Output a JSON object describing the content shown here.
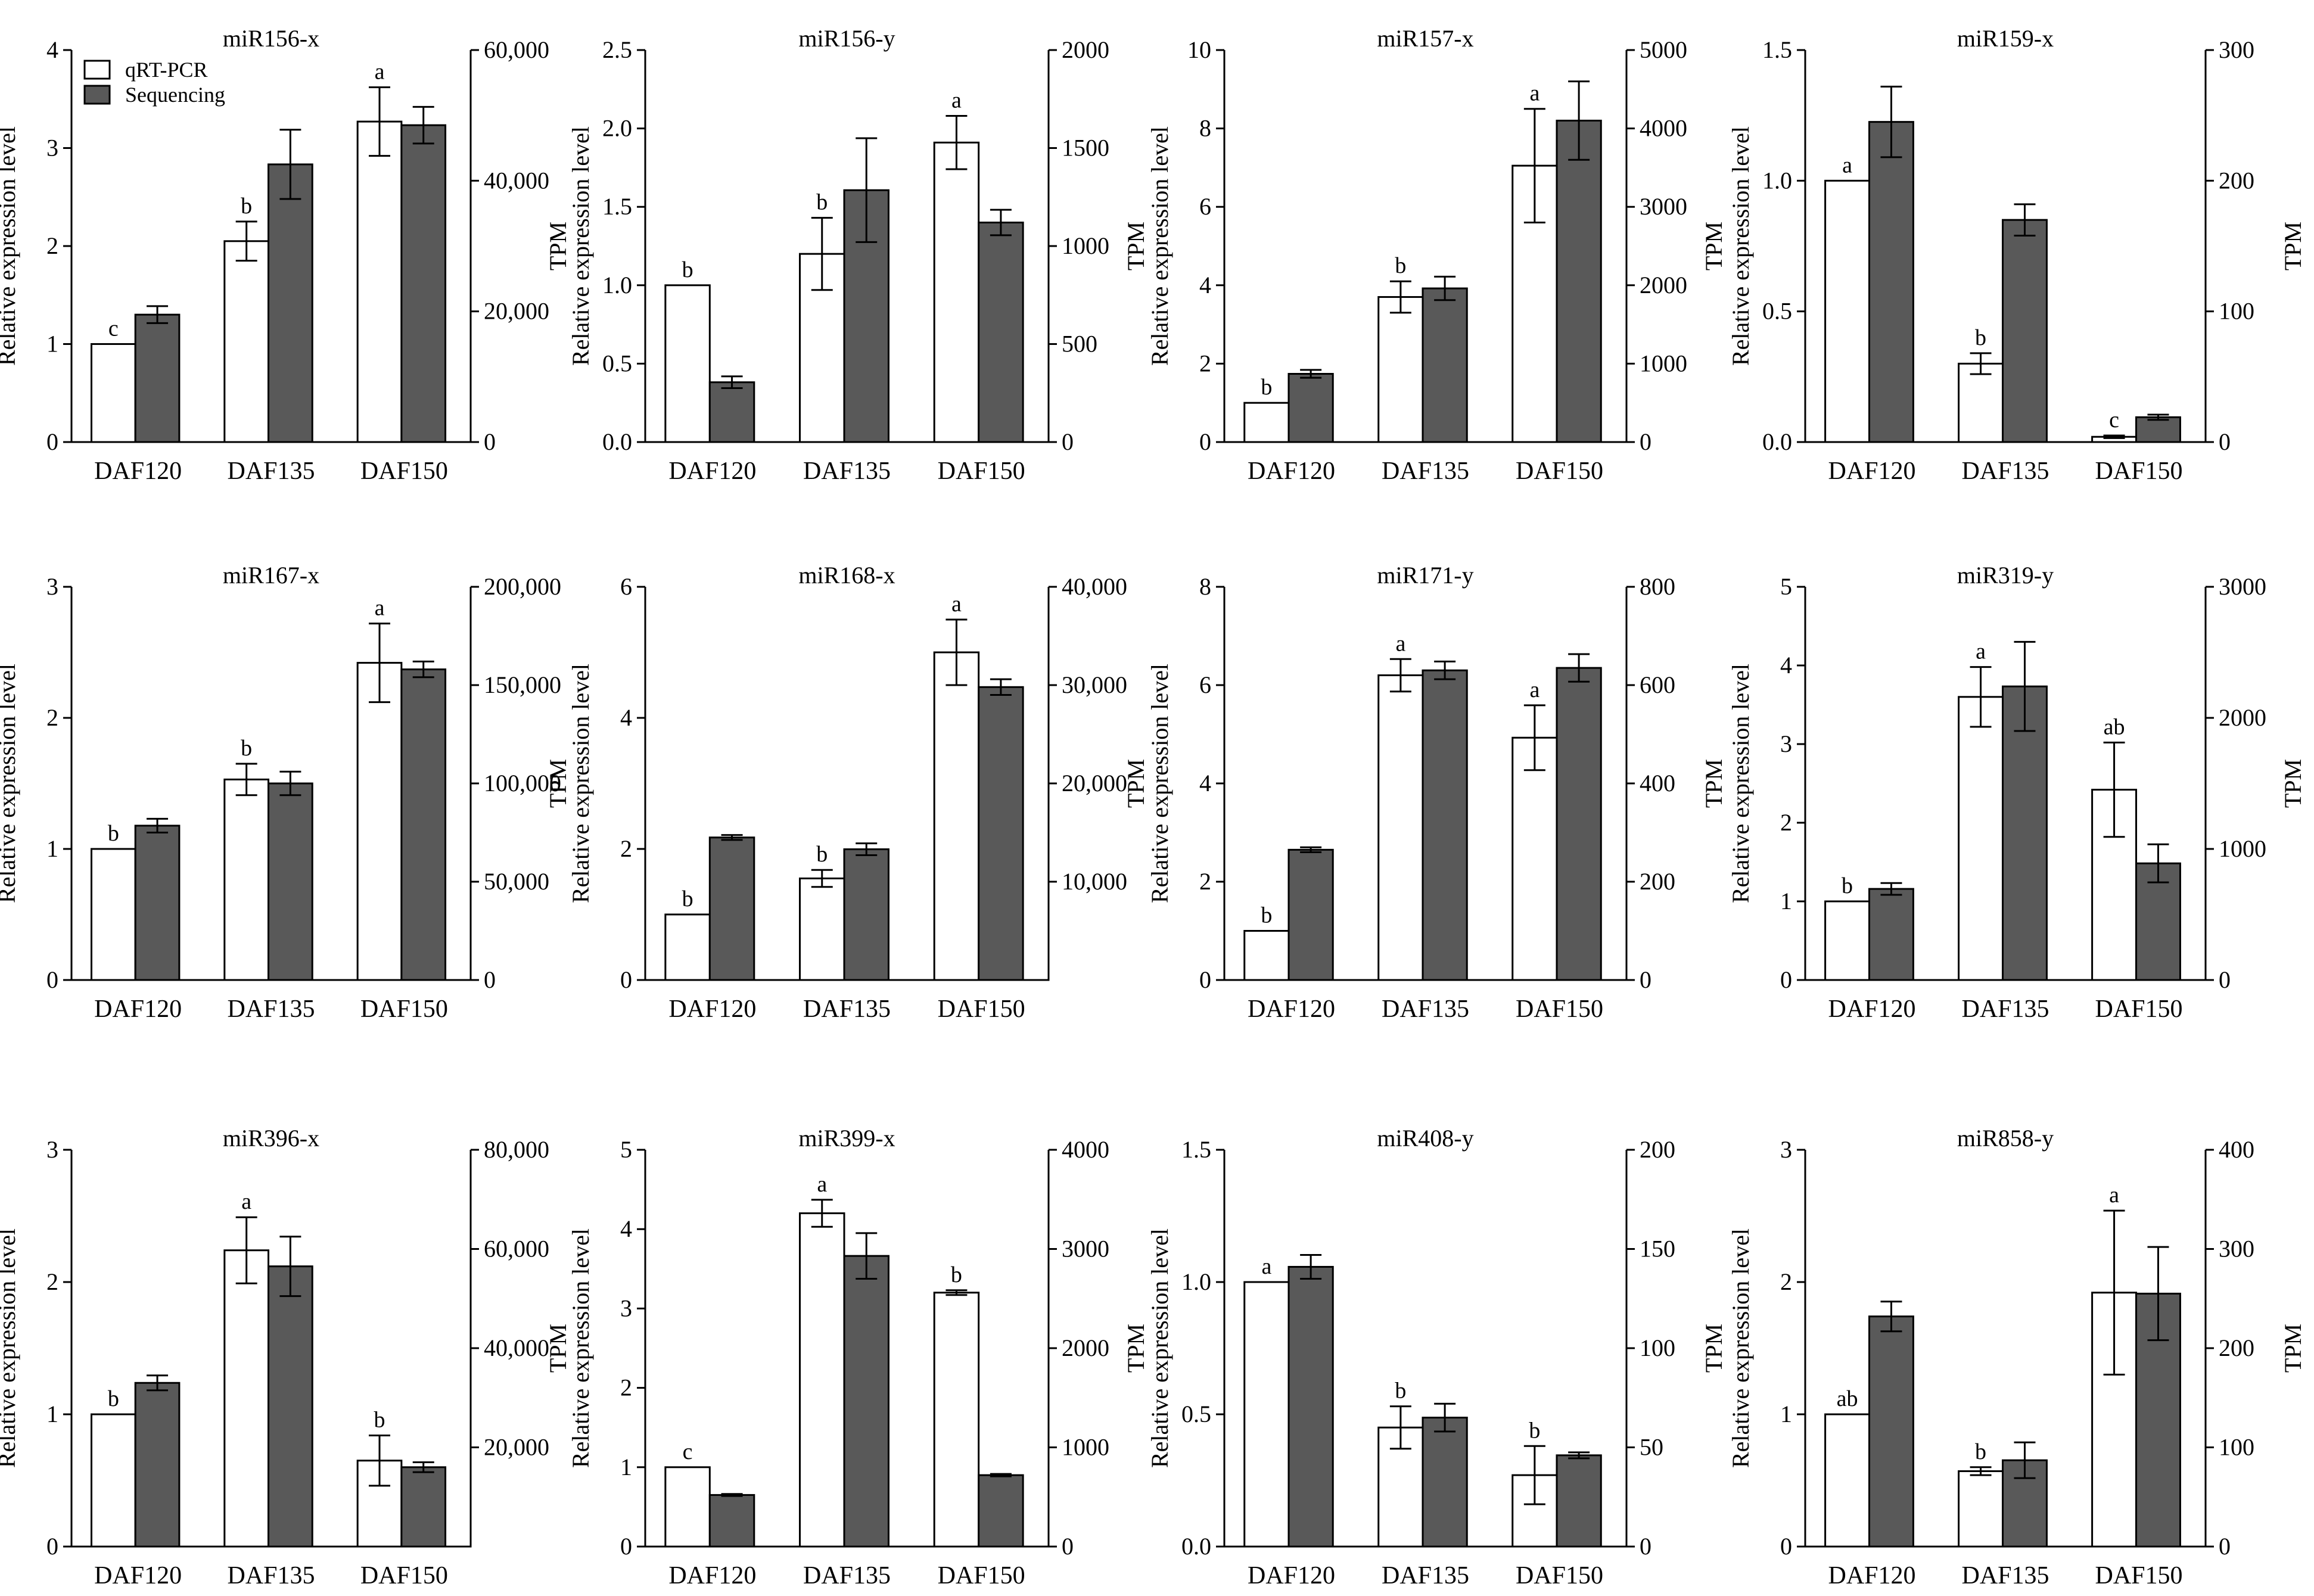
{
  "colors": {
    "qrt": "#ffffff",
    "seq": "#595959",
    "axis": "#000000"
  },
  "legend": {
    "qrt_label": "qRT-PCR",
    "seq_label": "Sequencing"
  },
  "chart_data": [
    {
      "type": "bar",
      "title": "miR156-x",
      "categories": [
        "DAF120",
        "DAF135",
        "DAF150"
      ],
      "ylabel": "Relative expression level",
      "y2label": "TPM",
      "ylim": [
        0,
        4
      ],
      "yticks": [
        "0",
        "1",
        "2",
        "3",
        "4"
      ],
      "y2lim": [
        0,
        60000
      ],
      "y2ticks": [
        "0",
        "20,000",
        "40,000",
        "60,000"
      ],
      "series": [
        {
          "name": "qRT-PCR",
          "axis": "left",
          "values": [
            1.0,
            2.05,
            3.27
          ],
          "errors": [
            0,
            0.2,
            0.35
          ],
          "letters": [
            "c",
            "b",
            "a"
          ]
        },
        {
          "name": "Sequencing",
          "axis": "right",
          "values": [
            19500,
            42500,
            48500
          ],
          "errors": [
            1300,
            5300,
            2800
          ]
        }
      ],
      "show_legend": true
    },
    {
      "type": "bar",
      "title": "miR156-y",
      "categories": [
        "DAF120",
        "DAF135",
        "DAF150"
      ],
      "ylabel": "Relative expression level",
      "y2label": "TPM",
      "ylim": [
        0,
        2.5
      ],
      "yticks": [
        "0.0",
        "0.5",
        "1.0",
        "1.5",
        "2.0",
        "2.5"
      ],
      "y2lim": [
        0,
        2000
      ],
      "y2ticks": [
        "0",
        "500",
        "1000",
        "1500",
        "2000"
      ],
      "series": [
        {
          "name": "qRT-PCR",
          "axis": "left",
          "values": [
            1.0,
            1.2,
            1.91
          ],
          "errors": [
            0,
            0.23,
            0.17
          ],
          "letters": [
            "b",
            "b",
            "a"
          ]
        },
        {
          "name": "Sequencing",
          "axis": "right",
          "values": [
            305,
            1285,
            1120
          ],
          "errors": [
            30,
            265,
            65
          ]
        }
      ]
    },
    {
      "type": "bar",
      "title": "miR157-x",
      "categories": [
        "DAF120",
        "DAF135",
        "DAF150"
      ],
      "ylabel": "Relative expression level",
      "y2label": "TPM",
      "ylim": [
        0,
        10
      ],
      "yticks": [
        "0",
        "2",
        "4",
        "6",
        "8",
        "10"
      ],
      "y2lim": [
        0,
        5000
      ],
      "y2ticks": [
        "0",
        "1000",
        "2000",
        "3000",
        "4000",
        "5000"
      ],
      "series": [
        {
          "name": "qRT-PCR",
          "axis": "left",
          "values": [
            1.0,
            3.7,
            7.05
          ],
          "errors": [
            0,
            0.4,
            1.45
          ],
          "letters": [
            "b",
            "b",
            "a"
          ]
        },
        {
          "name": "Sequencing",
          "axis": "right",
          "values": [
            870,
            1960,
            4100
          ],
          "errors": [
            50,
            150,
            500
          ]
        }
      ]
    },
    {
      "type": "bar",
      "title": "miR159-x",
      "categories": [
        "DAF120",
        "DAF135",
        "DAF150"
      ],
      "ylabel": "Relative expression level",
      "y2label": "TPM",
      "ylim": [
        0,
        1.5
      ],
      "yticks": [
        "0.0",
        "0.5",
        "1.0",
        "1.5"
      ],
      "y2lim": [
        0,
        300
      ],
      "y2ticks": [
        "0",
        "100",
        "200",
        "300"
      ],
      "series": [
        {
          "name": "qRT-PCR",
          "axis": "left",
          "values": [
            1.0,
            0.3,
            0.02
          ],
          "errors": [
            0,
            0.04,
            0.005
          ],
          "letters": [
            "a",
            "b",
            "c"
          ]
        },
        {
          "name": "Sequencing",
          "axis": "right",
          "values": [
            245,
            170,
            19
          ],
          "errors": [
            27,
            12,
            2
          ]
        }
      ]
    },
    {
      "type": "bar",
      "title": "miR167-x",
      "categories": [
        "DAF120",
        "DAF135",
        "DAF150"
      ],
      "ylabel": "Relative expression level",
      "y2label": "TPM",
      "ylim": [
        0,
        3
      ],
      "yticks": [
        "0",
        "1",
        "2",
        "3"
      ],
      "y2lim": [
        0,
        200000
      ],
      "y2ticks": [
        "0",
        "50,000",
        "100,000",
        "150,000",
        "200,000"
      ],
      "series": [
        {
          "name": "qRT-PCR",
          "axis": "left",
          "values": [
            1.0,
            1.53,
            2.42
          ],
          "errors": [
            0,
            0.12,
            0.3
          ],
          "letters": [
            "b",
            "b",
            "a"
          ]
        },
        {
          "name": "Sequencing",
          "axis": "right",
          "values": [
            78500,
            100000,
            158000
          ],
          "errors": [
            3500,
            6000,
            4000
          ]
        }
      ]
    },
    {
      "type": "bar",
      "title": "miR168-x",
      "categories": [
        "DAF120",
        "DAF135",
        "DAF150"
      ],
      "ylabel": "Relative expression level",
      "y2label": "TPM",
      "ylim": [
        0,
        6
      ],
      "yticks": [
        "0",
        "2",
        "4",
        "6"
      ],
      "y2lim": [
        0,
        40000
      ],
      "y2ticks": [
        "10,000",
        "20,000",
        "30,000",
        "40,000"
      ],
      "series": [
        {
          "name": "qRT-PCR",
          "axis": "left",
          "values": [
            1.0,
            1.55,
            5.0
          ],
          "errors": [
            0,
            0.13,
            0.5
          ],
          "letters": [
            "b",
            "b",
            "a"
          ]
        },
        {
          "name": "Sequencing",
          "axis": "right",
          "values": [
            14500,
            13300,
            29800
          ],
          "errors": [
            250,
            600,
            800
          ]
        }
      ]
    },
    {
      "type": "bar",
      "title": "miR171-y",
      "categories": [
        "DAF120",
        "DAF135",
        "DAF150"
      ],
      "ylabel": "Relative expression level",
      "y2label": "TPM",
      "ylim": [
        0,
        8
      ],
      "yticks": [
        "0",
        "2",
        "4",
        "6",
        "8"
      ],
      "y2lim": [
        0,
        800
      ],
      "y2ticks": [
        "0",
        "200",
        "400",
        "600",
        "800"
      ],
      "series": [
        {
          "name": "qRT-PCR",
          "axis": "left",
          "values": [
            1.0,
            6.2,
            4.93
          ],
          "errors": [
            0,
            0.33,
            0.66
          ],
          "letters": [
            "b",
            "a",
            "a"
          ]
        },
        {
          "name": "Sequencing",
          "axis": "right",
          "values": [
            265,
            630,
            635
          ],
          "errors": [
            5,
            18,
            28
          ]
        }
      ]
    },
    {
      "type": "bar",
      "title": "miR319-y",
      "categories": [
        "DAF120",
        "DAF135",
        "DAF150"
      ],
      "ylabel": "Relative expression level",
      "y2label": "TPM",
      "ylim": [
        0,
        5
      ],
      "yticks": [
        "0",
        "1",
        "2",
        "3",
        "4",
        "5"
      ],
      "y2lim": [
        0,
        3000
      ],
      "y2ticks": [
        "0",
        "1000",
        "2000",
        "3000"
      ],
      "series": [
        {
          "name": "qRT-PCR",
          "axis": "left",
          "values": [
            1.0,
            3.6,
            2.42
          ],
          "errors": [
            0,
            0.38,
            0.6
          ],
          "letters": [
            "b",
            "a",
            "ab"
          ]
        },
        {
          "name": "Sequencing",
          "axis": "right",
          "values": [
            695,
            2240,
            890
          ],
          "errors": [
            45,
            340,
            145
          ]
        }
      ]
    },
    {
      "type": "bar",
      "title": "miR396-x",
      "categories": [
        "DAF120",
        "DAF135",
        "DAF150"
      ],
      "ylabel": "Relative expression level",
      "y2label": "TPM",
      "ylim": [
        0,
        3
      ],
      "yticks": [
        "0",
        "1",
        "2",
        "3"
      ],
      "y2lim": [
        0,
        80000
      ],
      "y2ticks": [
        "20,000",
        "40,000",
        "60,000",
        "80,000"
      ],
      "series": [
        {
          "name": "qRT-PCR",
          "axis": "left",
          "values": [
            1.0,
            2.24,
            0.65
          ],
          "errors": [
            0,
            0.25,
            0.19
          ],
          "letters": [
            "b",
            "a",
            "b"
          ]
        },
        {
          "name": "Sequencing",
          "axis": "right",
          "values": [
            33000,
            56500,
            16000
          ],
          "errors": [
            1500,
            6000,
            1000
          ]
        }
      ]
    },
    {
      "type": "bar",
      "title": "miR399-x",
      "categories": [
        "DAF120",
        "DAF135",
        "DAF150"
      ],
      "ylabel": "Relative expression level",
      "y2label": "TPM",
      "ylim": [
        0,
        5
      ],
      "yticks": [
        "0",
        "1",
        "2",
        "3",
        "4",
        "5"
      ],
      "y2lim": [
        0,
        4000
      ],
      "y2ticks": [
        "0",
        "1000",
        "2000",
        "3000",
        "4000"
      ],
      "series": [
        {
          "name": "qRT-PCR",
          "axis": "left",
          "values": [
            1.0,
            4.2,
            3.2
          ],
          "errors": [
            0,
            0.17,
            0.03
          ],
          "letters": [
            "c",
            "a",
            "b"
          ]
        },
        {
          "name": "Sequencing",
          "axis": "right",
          "values": [
            520,
            2930,
            720
          ],
          "errors": [
            10,
            230,
            12
          ]
        }
      ]
    },
    {
      "type": "bar",
      "title": "miR408-y",
      "categories": [
        "DAF120",
        "DAF135",
        "DAF150"
      ],
      "ylabel": "Relative expression level",
      "y2label": "TPM",
      "ylim": [
        0,
        1.5
      ],
      "yticks": [
        "0.0",
        "0.5",
        "1.0",
        "1.5"
      ],
      "y2lim": [
        0,
        200
      ],
      "y2ticks": [
        "0",
        "50",
        "100",
        "150",
        "200"
      ],
      "series": [
        {
          "name": "qRT-PCR",
          "axis": "left",
          "values": [
            1.0,
            0.45,
            0.27
          ],
          "errors": [
            0,
            0.08,
            0.11
          ],
          "letters": [
            "a",
            "b",
            "b"
          ]
        },
        {
          "name": "Sequencing",
          "axis": "right",
          "values": [
            141,
            65,
            46
          ],
          "errors": [
            6,
            7,
            1.5
          ]
        }
      ]
    },
    {
      "type": "bar",
      "title": "miR858-y",
      "categories": [
        "DAF120",
        "DAF135",
        "DAF150"
      ],
      "ylabel": "Relative expression level",
      "y2label": "TPM",
      "ylim": [
        0,
        3
      ],
      "yticks": [
        "0",
        "1",
        "2",
        "3"
      ],
      "y2lim": [
        0,
        400
      ],
      "y2ticks": [
        "0",
        "100",
        "200",
        "300",
        "400"
      ],
      "series": [
        {
          "name": "qRT-PCR",
          "axis": "left",
          "values": [
            1.0,
            0.57,
            1.92
          ],
          "errors": [
            0,
            0.03,
            0.62
          ],
          "letters": [
            "ab",
            "b",
            "a"
          ]
        },
        {
          "name": "Sequencing",
          "axis": "right",
          "values": [
            232,
            87,
            255
          ],
          "errors": [
            15,
            18,
            47
          ]
        }
      ]
    }
  ]
}
